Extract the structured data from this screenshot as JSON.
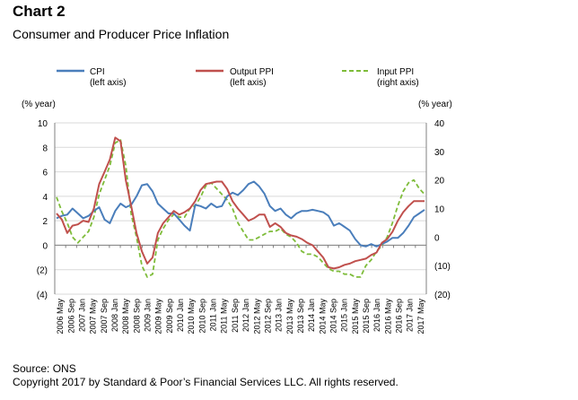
{
  "chart_data": {
    "type": "line",
    "title": "Chart 2",
    "subtitle": "Consumer and Producer Price Inflation",
    "left_axis": {
      "unit_label": "(% year)",
      "range": [
        -4,
        10
      ],
      "ticks": [
        10,
        8,
        6,
        4,
        2,
        0,
        -2,
        -4
      ],
      "tick_labels": [
        "10",
        "8",
        "6",
        "4",
        "2",
        "0",
        "(2)",
        "(4)"
      ]
    },
    "right_axis": {
      "unit_label": "(% year)",
      "range": [
        -20,
        40
      ],
      "ticks": [
        40,
        30,
        20,
        10,
        0,
        -10,
        -20
      ],
      "tick_labels": [
        "40",
        "30",
        "20",
        "10",
        "0",
        "(10)",
        "(20)"
      ]
    },
    "x_tick_labels": [
      "2006 May",
      "2006 Sep",
      "2007 Jan",
      "2007 May",
      "2007 Sep",
      "2008 Jan",
      "2008 May",
      "2008 Sep",
      "2009 Jan",
      "2009 May",
      "2009 Sep",
      "2010 Jan",
      "2010 May",
      "2010 Sep",
      "2011 Jan",
      "2011 May",
      "2011 Sep",
      "2012 Jan",
      "2012 May",
      "2012 Sep",
      "2013 Jan",
      "2013 May",
      "2013 Sep",
      "2014 Jan",
      "2014 May",
      "2014 Sep",
      "2015 Jan",
      "2015 May",
      "2015 Sep",
      "2016 Jan",
      "2016 May",
      "2016 Sep",
      "2017 Jan",
      "2017 May"
    ],
    "grid": "horizontal",
    "legend_placement": "top",
    "series": [
      {
        "name": "CPI",
        "sub": "(left axis)",
        "axis": "left",
        "color": "#4a7ebb",
        "style": "solid",
        "values": [
          2.2,
          2.4,
          2.5,
          3.0,
          2.6,
          2.2,
          2.4,
          2.8,
          3.1,
          2.1,
          1.8,
          2.8,
          3.4,
          3.1,
          3.3,
          4.0,
          4.9,
          5.0,
          4.4,
          3.4,
          3.0,
          2.6,
          2.6,
          2.1,
          1.6,
          1.2,
          3.3,
          3.2,
          3.0,
          3.4,
          3.1,
          3.2,
          4.0,
          4.3,
          4.1,
          4.5,
          5.0,
          5.2,
          4.8,
          4.2,
          3.2,
          2.8,
          3.0,
          2.5,
          2.2,
          2.6,
          2.8,
          2.8,
          2.9,
          2.8,
          2.7,
          2.4,
          1.6,
          1.8,
          1.5,
          1.2,
          0.5,
          0.0,
          -0.1,
          0.1,
          -0.1,
          0.1,
          0.3,
          0.6,
          0.6,
          1.0,
          1.6,
          2.3,
          2.6,
          2.9
        ]
      },
      {
        "name": "Output PPI",
        "sub": "(left axis)",
        "axis": "left",
        "color": "#c0504d",
        "style": "solid",
        "values": [
          2.6,
          2.1,
          1.0,
          1.6,
          1.7,
          2.0,
          1.9,
          3.0,
          5.0,
          6.0,
          7.0,
          8.8,
          8.5,
          5.3,
          3.2,
          1.0,
          -0.5,
          -1.5,
          -1.0,
          1.0,
          1.8,
          2.3,
          2.8,
          2.5,
          2.7,
          3.0,
          3.6,
          4.5,
          5.0,
          5.1,
          5.2,
          5.2,
          4.6,
          3.6,
          3.0,
          2.5,
          2.0,
          2.2,
          2.5,
          2.5,
          1.5,
          1.8,
          1.5,
          1.0,
          0.8,
          0.7,
          0.5,
          0.2,
          0.0,
          -0.5,
          -1.0,
          -1.8,
          -1.9,
          -1.8,
          -1.6,
          -1.5,
          -1.3,
          -1.2,
          -1.1,
          -0.8,
          -0.6,
          0.2,
          0.5,
          1.1,
          2.0,
          2.7,
          3.2,
          3.6,
          3.6,
          3.6
        ]
      },
      {
        "name": "Input PPI",
        "sub": "(right axis)",
        "axis": "right",
        "color": "#7ebc3a",
        "style": "dashed",
        "values": [
          14,
          9,
          5,
          0,
          -2,
          0,
          2,
          7,
          15,
          20,
          25,
          33,
          34,
          25,
          8,
          0,
          -10,
          -14,
          -13,
          -1,
          3,
          6,
          8,
          7,
          7,
          10,
          11,
          14,
          18,
          19,
          17,
          15,
          13,
          10,
          5,
          2,
          -1,
          -1,
          0,
          1,
          2,
          2,
          3,
          1,
          0,
          -2,
          -5,
          -6,
          -6,
          -7,
          -9,
          -11,
          -12,
          -12,
          -13,
          -13,
          -14,
          -14,
          -10,
          -8,
          -5,
          -3,
          0,
          5,
          11,
          16,
          19,
          20,
          17,
          15
        ]
      }
    ]
  },
  "source": "Source: ONS",
  "copyright": "Copyright 2017 by Standard & Poor’s Financial Services LLC. All rights reserved."
}
